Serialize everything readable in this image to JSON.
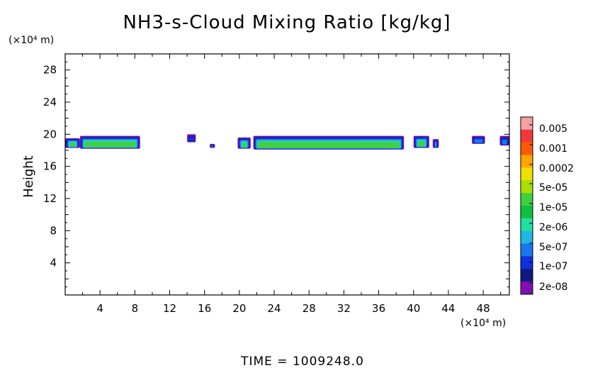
{
  "chart_data": {
    "type": "heatmap",
    "title": "NH3-s-Cloud Mixing Ratio [kg/kg]",
    "ylabel": "Height",
    "x_unit": "(×10⁴ m)",
    "y_unit": "(×10⁴ m)",
    "xlim": [
      0,
      51
    ],
    "ylim": [
      0,
      30
    ],
    "x_ticks": [
      4,
      8,
      12,
      16,
      20,
      24,
      28,
      32,
      36,
      40,
      44,
      48
    ],
    "y_ticks": [
      4,
      8,
      12,
      16,
      20,
      24,
      28
    ],
    "colorbar": {
      "labels": [
        "0.005",
        "0.001",
        "0.0002",
        "5e-05",
        "1e-05",
        "2e-06",
        "5e-07",
        "1e-07",
        "2e-08"
      ],
      "colors": [
        "#f7a0a0",
        "#f03a3a",
        "#ff5a00",
        "#ffa500",
        "#f0e000",
        "#a8e000",
        "#40d040",
        "#10c040",
        "#20e0a0",
        "#20b8e0",
        "#1878f0",
        "#1030e0",
        "#101880",
        "#8010b0"
      ]
    },
    "cloud_layers": [
      {
        "x0": 0.0,
        "x1": 1.7,
        "base": 18.3,
        "top": 19.5,
        "core": "5e-06"
      },
      {
        "x0": 1.7,
        "x1": 8.6,
        "base": 18.2,
        "top": 19.8,
        "core": "5e-06"
      },
      {
        "x0": 14.0,
        "x1": 15.0,
        "base": 19.0,
        "top": 20.0,
        "core": "2e-08"
      },
      {
        "x0": 16.6,
        "x1": 17.2,
        "base": 18.3,
        "top": 18.8,
        "core": "5e-07"
      },
      {
        "x0": 19.8,
        "x1": 21.3,
        "base": 18.2,
        "top": 19.6,
        "core": "5e-06"
      },
      {
        "x0": 21.6,
        "x1": 38.9,
        "base": 18.1,
        "top": 19.8,
        "core": "5e-06"
      },
      {
        "x0": 40.0,
        "x1": 41.8,
        "base": 18.3,
        "top": 19.8,
        "core": "5e-06"
      },
      {
        "x0": 42.2,
        "x1": 42.9,
        "base": 18.3,
        "top": 19.4,
        "core": "2e-06"
      },
      {
        "x0": 46.7,
        "x1": 48.2,
        "base": 18.8,
        "top": 19.8,
        "core": "1e-07"
      },
      {
        "x0": 49.9,
        "x1": 51.0,
        "base": 18.6,
        "top": 19.8,
        "core": "1e-07"
      }
    ]
  },
  "footer": {
    "time": "TIME  =  1009248.0"
  }
}
